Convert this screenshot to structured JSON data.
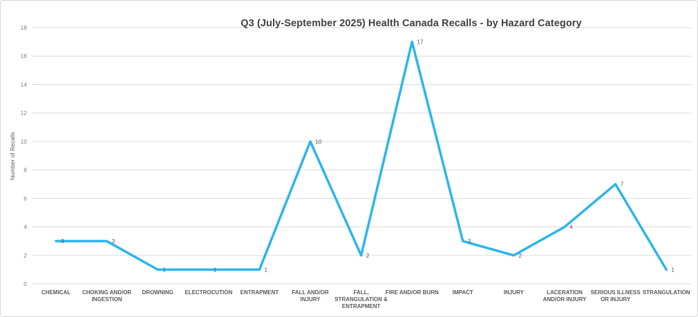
{
  "chart_data": {
    "type": "line",
    "title": "Q3 (July-September 2025) Health Canada Recalls - by Hazard Category",
    "xlabel": "",
    "ylabel": "Number of Recalls",
    "categories": [
      "CHEMICAL",
      "CHOKING AND/OR INGESTION",
      "DROWNING",
      "ELECTROCUTION",
      "ENTRAPMENT",
      "FALL AND/OR INJURY",
      "FALL, STRANGULATION & ENTRAPMENT",
      "FIRE AND/OR BURN",
      "IMPACT",
      "INJURY",
      "LACERATION AND/OR INJURY",
      "SERIOUS ILLNESS OR INJURY",
      "STRANGULATION"
    ],
    "category_lines": [
      [
        "CHEMICAL"
      ],
      [
        "CHOKING AND/OR",
        "INGESTION"
      ],
      [
        "DROWNING"
      ],
      [
        "ELECTROCUTION"
      ],
      [
        "ENTRAPMENT"
      ],
      [
        "FALL AND/OR",
        "INJURY"
      ],
      [
        "FALL,",
        "STRANGULATION &",
        "ENTRAPMENT"
      ],
      [
        "FIRE AND/OR BURN"
      ],
      [
        "IMPACT"
      ],
      [
        "INJURY"
      ],
      [
        "LACERATION",
        "AND/OR INJURY"
      ],
      [
        "SERIOUS ILLNESS",
        "OR INJURY"
      ],
      [
        "STRANGULATION"
      ]
    ],
    "values": [
      3,
      3,
      1,
      1,
      1,
      10,
      2,
      17,
      3,
      2,
      4,
      7,
      1
    ],
    "yticks": [
      0,
      2,
      4,
      6,
      8,
      10,
      12,
      14,
      16,
      18
    ],
    "ylim": [
      0,
      18
    ],
    "grid": "horizontal",
    "legend": "none",
    "line_color": "#2bb5ea",
    "grid_color": "#dadada",
    "tick_label_color": "#7f7f7f",
    "data_label_color": "#595959",
    "category_label_color": "#595959",
    "title_color": "#404040"
  }
}
